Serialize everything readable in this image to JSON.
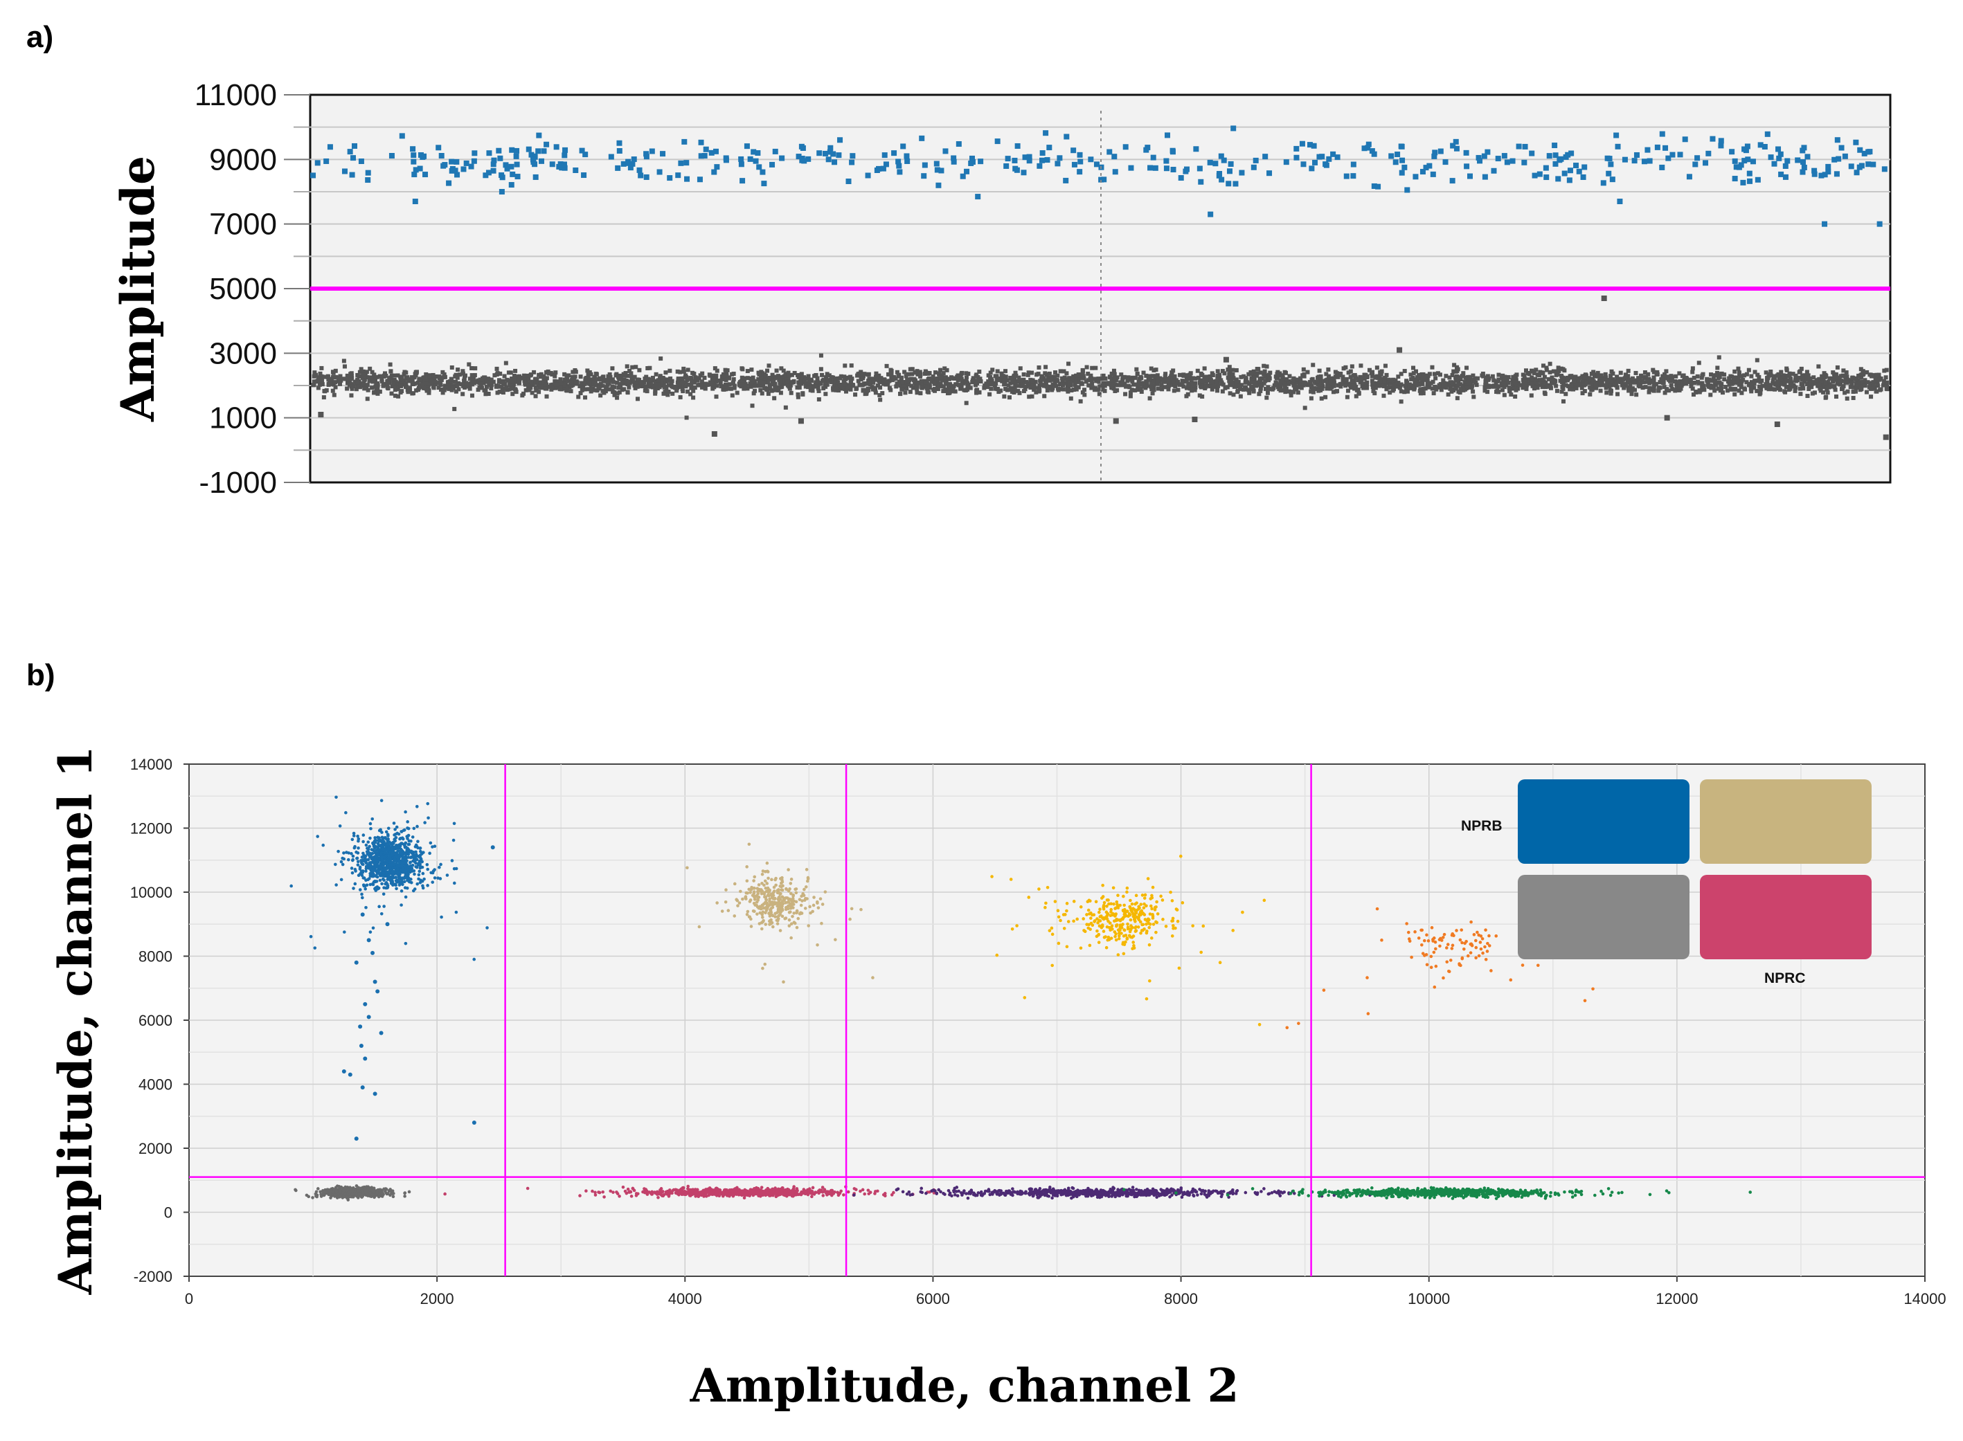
{
  "panels": {
    "a_label": "a)",
    "b_label": "b)"
  },
  "chart_data": [
    {
      "type": "scatter",
      "panel": "a",
      "title": "",
      "xlabel": "",
      "ylabel": "Amplitude",
      "ylim": [
        -1000,
        11000
      ],
      "xlim": [
        0,
        1
      ],
      "y_ticks": [
        "11000",
        "9000",
        "7000",
        "5000",
        "3000",
        "1000",
        "-1000"
      ],
      "grid": true,
      "threshold": 5000,
      "colors": {
        "threshold": "#ff00ff",
        "positive": "#1f77b4",
        "negative": "#555555",
        "background": "#f2f2f2"
      },
      "series": [
        {
          "group": "positive",
          "y_center": 8900,
          "y_spread": 350
        },
        {
          "group": "negative",
          "y_center": 2100,
          "y_spread": 180
        }
      ],
      "outliers": [
        {
          "x": 0.065,
          "y": 7700
        },
        {
          "x": 0.12,
          "y": 8000
        },
        {
          "x": 0.57,
          "y": 7300
        },
        {
          "x": 0.96,
          "y": 7000
        },
        {
          "x": 0.995,
          "y": 7000
        },
        {
          "x": 0.83,
          "y": 7700
        },
        {
          "x": 0.82,
          "y": 4700
        },
        {
          "x": 0.69,
          "y": 3100
        },
        {
          "x": 0.58,
          "y": 2800
        },
        {
          "x": 0.255,
          "y": 500
        },
        {
          "x": 0.31,
          "y": 900
        },
        {
          "x": 0.51,
          "y": 900
        },
        {
          "x": 0.56,
          "y": 950
        },
        {
          "x": 0.86,
          "y": 1000
        },
        {
          "x": 0.93,
          "y": 800
        },
        {
          "x": 0.999,
          "y": 400
        },
        {
          "x": 0.005,
          "y": 1100
        }
      ]
    },
    {
      "type": "scatter",
      "panel": "b",
      "title": "",
      "xlabel": "Amplitude,  channel 2",
      "ylabel": "Amplitude,  channel 1",
      "xlim": [
        0,
        14000
      ],
      "ylim": [
        -2000,
        14000
      ],
      "x_ticks": [
        "0",
        "2000",
        "4000",
        "6000",
        "8000",
        "10000",
        "12000",
        "14000"
      ],
      "y_ticks": [
        "14000",
        "12000",
        "10000",
        "8000",
        "6000",
        "4000",
        "2000",
        "0",
        "-2000"
      ],
      "grid": true,
      "thresholds": {
        "y": 1100,
        "x": [
          2550,
          5300,
          9050
        ]
      },
      "clusters": [
        {
          "color": "#1a6faf",
          "x": 1620,
          "y": 10950,
          "sx": 140,
          "sy": 420
        },
        {
          "color": "#c9b27f",
          "x": 4720,
          "y": 9750,
          "sx": 140,
          "sy": 350
        },
        {
          "color": "#f5b700",
          "x": 7520,
          "y": 9150,
          "sx": 210,
          "sy": 380
        },
        {
          "color": "#f07a22",
          "x": 10250,
          "y": 8250,
          "sx": 260,
          "sy": 330
        },
        {
          "color": "#6b6b6b",
          "x": 1320,
          "y": 620,
          "sx": 110,
          "sy": 70
        },
        {
          "color": "#c2406a",
          "x": 4450,
          "y": 620,
          "sx": 420,
          "sy": 60
        },
        {
          "color": "#4d2a74",
          "x": 7350,
          "y": 610,
          "sx": 560,
          "sy": 60
        },
        {
          "color": "#16884a",
          "x": 10100,
          "y": 610,
          "sx": 450,
          "sy": 60
        }
      ],
      "tail": {
        "color": "#1a6faf",
        "points": [
          [
            1400,
            9300
          ],
          [
            1450,
            8500
          ],
          [
            1350,
            7800
          ],
          [
            1500,
            7200
          ],
          [
            1420,
            6500
          ],
          [
            1380,
            5800
          ],
          [
            1550,
            5600
          ],
          [
            1300,
            4300
          ],
          [
            1400,
            3900
          ],
          [
            1500,
            3700
          ],
          [
            1350,
            2300
          ],
          [
            2300,
            2800
          ],
          [
            2450,
            11400
          ],
          [
            1250,
            4400
          ],
          [
            1600,
            9000
          ],
          [
            1480,
            8100
          ],
          [
            1520,
            6900
          ],
          [
            1450,
            6100
          ],
          [
            1390,
            5200
          ],
          [
            1420,
            4800
          ]
        ]
      },
      "legend": {
        "position": "top-right",
        "labels": {
          "top_left": "NPRB",
          "bottom_right": "NPRC"
        },
        "colors": [
          "#0066a8",
          "#c8b47f",
          "#888888",
          "#cc436c"
        ]
      }
    }
  ]
}
